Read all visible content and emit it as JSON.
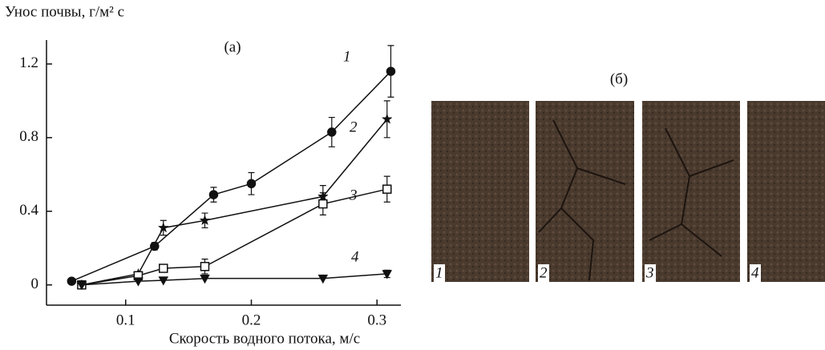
{
  "chart_data": {
    "type": "line",
    "title": "(а)",
    "y_label": "Унос почвы, г/м² с",
    "x_label": "Скорость водного потока, м/с",
    "xlim": [
      0.037,
      0.319
    ],
    "ylim": [
      -0.11,
      1.33
    ],
    "xticks": [
      0.1,
      0.2,
      0.3
    ],
    "yticks": [
      0,
      0.4,
      0.8,
      1.2
    ],
    "series": [
      {
        "name": "1",
        "color": "#111111",
        "marker": "circle",
        "x": [
          0.057,
          0.123,
          0.17,
          0.2,
          0.264,
          0.311
        ],
        "values": [
          0.02,
          0.21,
          0.49,
          0.55,
          0.83,
          1.16
        ],
        "errors": [
          0,
          0.02,
          0.04,
          0.06,
          0.08,
          0.14
        ]
      },
      {
        "name": "2",
        "color": "#111111",
        "marker": "star",
        "x": [
          0.065,
          0.11,
          0.13,
          0.163,
          0.257,
          0.308
        ],
        "values": [
          0,
          0.06,
          0.31,
          0.35,
          0.48,
          0.9
        ],
        "errors": [
          0,
          0,
          0.04,
          0.04,
          0.06,
          0.1
        ]
      },
      {
        "name": "3",
        "color": "#111111",
        "marker": "square",
        "x": [
          0.065,
          0.11,
          0.13,
          0.163,
          0.257,
          0.308
        ],
        "values": [
          0,
          0.05,
          0.09,
          0.1,
          0.44,
          0.52
        ],
        "errors": [
          0,
          0,
          0.02,
          0.04,
          0.06,
          0.07
        ]
      },
      {
        "name": "4",
        "color": "#111111",
        "marker": "triangle-down",
        "x": [
          0.065,
          0.11,
          0.13,
          0.163,
          0.257,
          0.308
        ],
        "values": [
          0,
          0.02,
          0.025,
          0.035,
          0.035,
          0.06
        ],
        "errors": [
          0,
          0,
          0,
          0,
          0,
          0.02
        ]
      }
    ]
  },
  "photos": {
    "title": "(б)",
    "labels": [
      "1",
      "2",
      "3",
      "4"
    ]
  }
}
